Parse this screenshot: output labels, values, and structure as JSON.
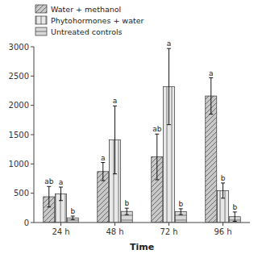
{
  "chart_data": {
    "type": "bar",
    "xlabel": "Time",
    "categories": [
      "24 h",
      "48 h",
      "72 h",
      "96 h"
    ],
    "series": [
      {
        "name": "Water + methanol",
        "color": "#c8c8c8",
        "values": [
          440,
          870,
          1120,
          2160
        ],
        "errors": [
          175,
          155,
          390,
          310
        ],
        "annotations": [
          "ab",
          "a",
          "ab",
          "a"
        ]
      },
      {
        "name": "Phytohormones + water",
        "color": "#e8e8e8",
        "values": [
          490,
          1410,
          2320,
          545
        ],
        "errors": [
          115,
          580,
          650,
          130
        ],
        "annotations": [
          "a",
          "a",
          "a",
          "b"
        ]
      },
      {
        "name": "Untreated controls",
        "color": "#d8d8d8",
        "values": [
          80,
          190,
          185,
          100
        ],
        "errors": [
          30,
          55,
          50,
          80
        ],
        "annotations": [
          "b",
          "b",
          "b",
          "b"
        ]
      }
    ],
    "ylim": [
      0,
      3000
    ],
    "yticks": [
      0,
      500,
      1000,
      1500,
      2000,
      2500,
      3000
    ],
    "grid": false,
    "legend": "upper left"
  }
}
